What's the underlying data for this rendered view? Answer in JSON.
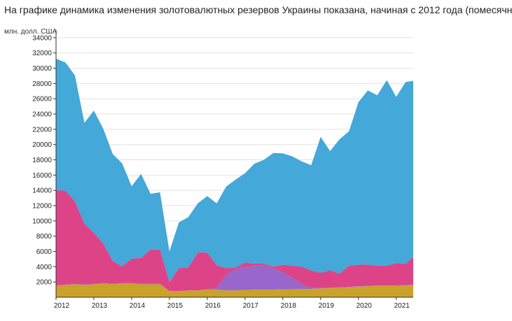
{
  "heading": "На графике динамика изменения золотовалютных резервов Украины показана, начиная с 2012 года (помесячн",
  "chart_data": {
    "type": "area",
    "title": "",
    "ylabel": "млн. долл. США",
    "xlabel": "",
    "ylim": [
      0,
      35000
    ],
    "yticks": [
      2000,
      4000,
      6000,
      8000,
      10000,
      12000,
      14000,
      16000,
      18000,
      20000,
      22000,
      24000,
      26000,
      28000,
      30000,
      32000,
      34000
    ],
    "xticks": [
      "2012",
      "2013",
      "2014",
      "2015",
      "2016",
      "2017",
      "2018",
      "2019",
      "2020",
      "2021"
    ],
    "xlim": [
      2012,
      2021.45
    ],
    "grid": true,
    "stacked": true,
    "x": [
      2012,
      2012.25,
      2012.5,
      2012.75,
      2013,
      2013.25,
      2013.5,
      2013.75,
      2014,
      2014.25,
      2014.5,
      2014.75,
      2015,
      2015.25,
      2015.5,
      2015.75,
      2016,
      2016.25,
      2016.5,
      2016.75,
      2017,
      2017.25,
      2017.5,
      2017.75,
      2018,
      2018.25,
      2018.5,
      2018.75,
      2019,
      2019.25,
      2019.5,
      2019.75,
      2020,
      2020.25,
      2020.5,
      2020.75,
      2021,
      2021.25,
      2021.45
    ],
    "series": [
      {
        "color": "#c9a22a",
        "values": [
          1500,
          1600,
          1700,
          1600,
          1700,
          1800,
          1700,
          1800,
          1800,
          1700,
          1700,
          1700,
          800,
          800,
          900,
          900,
          1000,
          1000,
          900,
          900,
          950,
          1000,
          1000,
          1000,
          1050,
          1050,
          1100,
          1100,
          1150,
          1200,
          1250,
          1300,
          1400,
          1450,
          1500,
          1500,
          1500,
          1550,
          1600
        ]
      },
      {
        "color": "#9966cc",
        "values": [
          50,
          50,
          50,
          50,
          50,
          50,
          50,
          50,
          50,
          50,
          50,
          50,
          0,
          0,
          0,
          0,
          50,
          200,
          2000,
          2800,
          3000,
          3100,
          3200,
          2800,
          2200,
          1500,
          600,
          100,
          50,
          50,
          50,
          50,
          50,
          50,
          50,
          50,
          50,
          50,
          50
        ]
      },
      {
        "color": "#dd4488",
        "values": [
          12500,
          12300,
          10800,
          8000,
          6700,
          5200,
          3000,
          2200,
          3200,
          3400,
          4500,
          4500,
          1200,
          3000,
          3000,
          5000,
          4800,
          3000,
          900,
          200,
          600,
          300,
          200,
          200,
          1000,
          1600,
          2300,
          2300,
          2000,
          2300,
          1800,
          2800,
          2800,
          2800,
          2600,
          2600,
          2900,
          2800,
          3600
        ]
      },
      {
        "color": "#44a8d8",
        "values": [
          17200,
          16800,
          16500,
          13200,
          16000,
          15000,
          14000,
          13500,
          9500,
          11000,
          7300,
          7500,
          4000,
          6000,
          6600,
          6400,
          7400,
          8100,
          10700,
          11500,
          11700,
          13100,
          13600,
          14900,
          14600,
          14300,
          13800,
          13800,
          17800,
          15600,
          17600,
          17600,
          21300,
          22800,
          22300,
          24300,
          21800,
          23800,
          23100
        ]
      }
    ]
  }
}
